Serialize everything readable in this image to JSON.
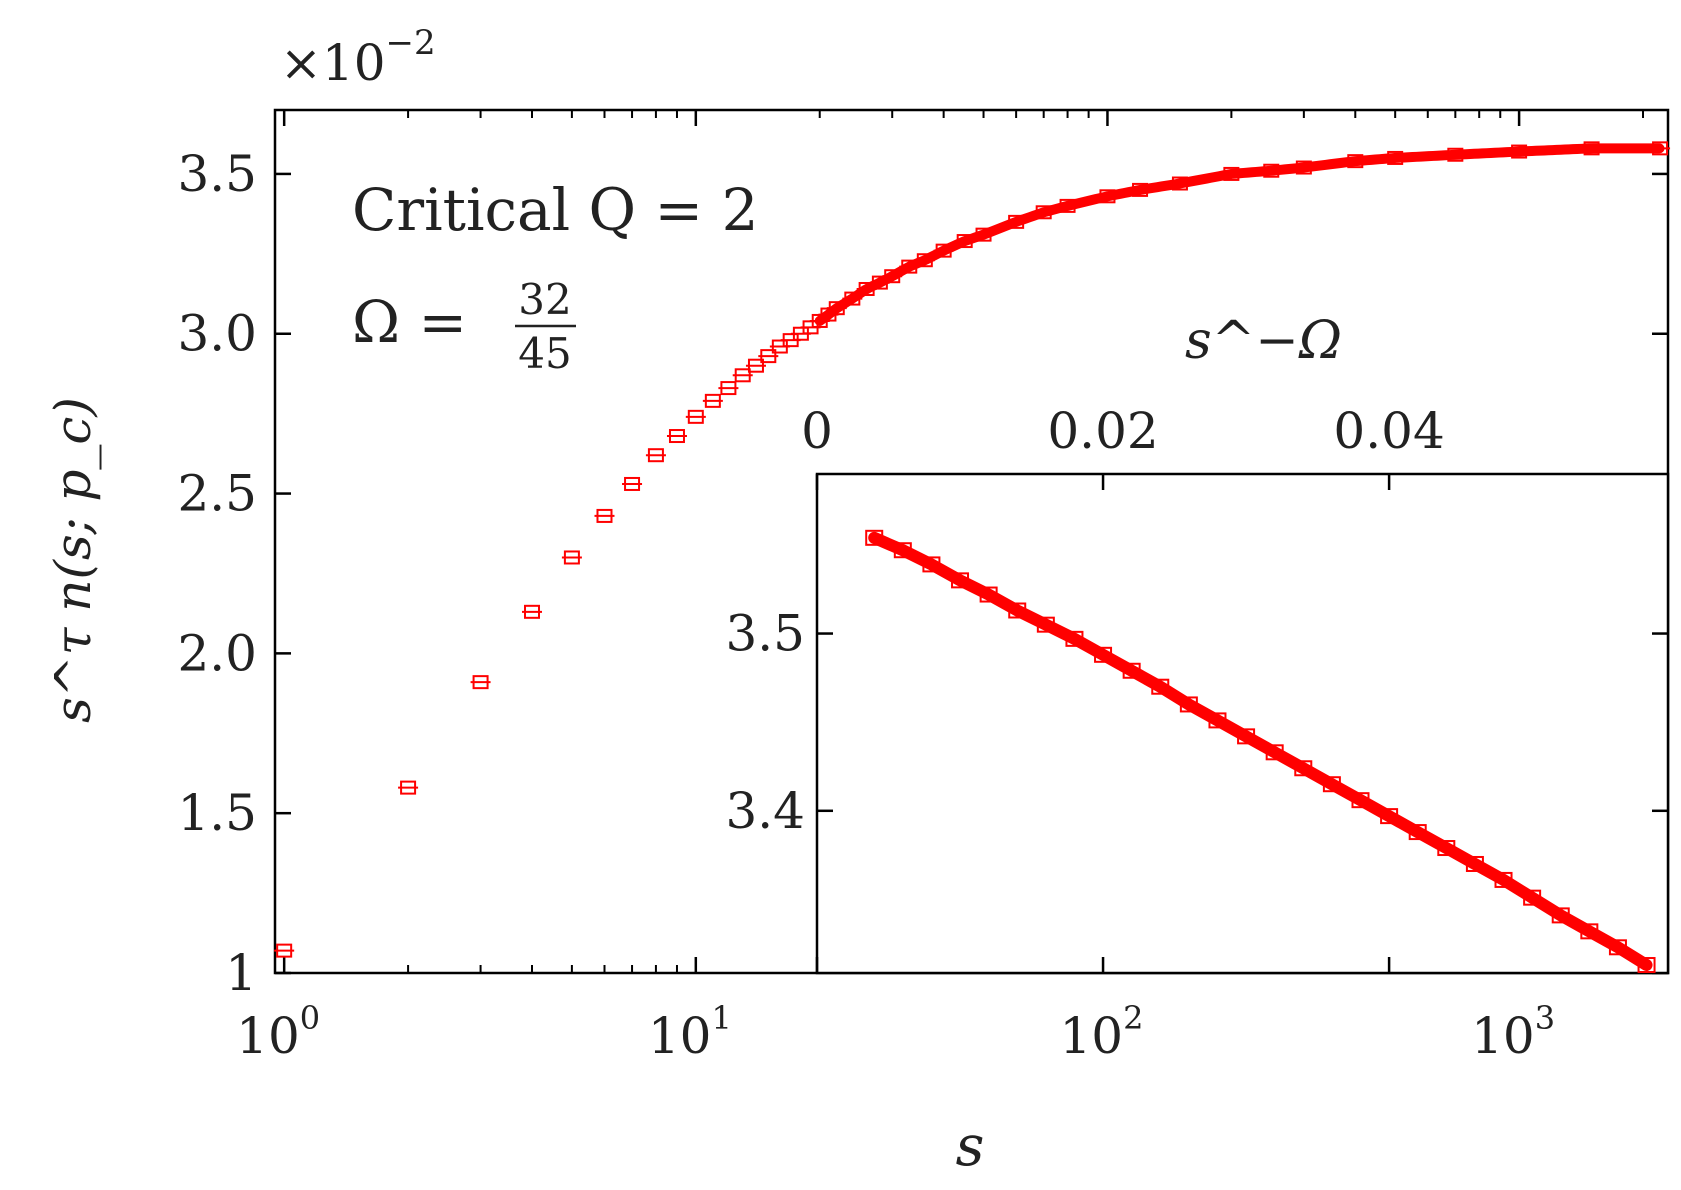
{
  "chart_data": [
    {
      "name": "main",
      "type": "scatter",
      "x_scale": "log",
      "xlabel": "s",
      "ylabel": "s^τ n(s; p_c)",
      "y_multiplier_label": "×10",
      "y_multiplier_exp": "−2",
      "xlim": [
        0.95,
        2300
      ],
      "ylim": [
        1.0,
        3.7
      ],
      "x_ticks": [
        {
          "value": 1,
          "base": "10",
          "exp": "0"
        },
        {
          "value": 10,
          "base": "10",
          "exp": "1"
        },
        {
          "value": 100,
          "base": "10",
          "exp": "2"
        },
        {
          "value": 1000,
          "base": "10",
          "exp": "3"
        }
      ],
      "y_ticks": [
        {
          "value": 1.0,
          "label": "1"
        },
        {
          "value": 1.5,
          "label": "1.5"
        },
        {
          "value": 2.0,
          "label": "2.0"
        },
        {
          "value": 2.5,
          "label": "2.5"
        },
        {
          "value": 3.0,
          "label": "3.0"
        },
        {
          "value": 3.5,
          "label": "3.5"
        }
      ],
      "annotation_line1": "Critical Q = 2",
      "annotation_omega": "Ω =",
      "annotation_frac_num": "32",
      "annotation_frac_den": "45",
      "series": [
        {
          "marker": "open-square",
          "color": "#ff0000",
          "x": [
            1,
            2,
            3,
            4,
            5,
            6,
            7,
            8,
            9,
            10,
            11,
            12,
            13,
            14,
            15,
            16,
            17,
            18,
            19,
            20,
            21,
            22,
            24,
            26,
            28,
            30,
            33,
            36,
            40,
            45,
            50,
            60,
            70,
            80,
            100,
            120,
            150,
            200,
            250,
            300,
            400,
            500,
            700,
            1000,
            1500,
            2200
          ],
          "y": [
            1.07,
            1.58,
            1.91,
            2.13,
            2.3,
            2.43,
            2.53,
            2.62,
            2.68,
            2.74,
            2.79,
            2.83,
            2.87,
            2.9,
            2.93,
            2.96,
            2.98,
            3.0,
            3.02,
            3.04,
            3.06,
            3.08,
            3.11,
            3.14,
            3.16,
            3.18,
            3.21,
            3.23,
            3.26,
            3.29,
            3.31,
            3.35,
            3.38,
            3.4,
            3.43,
            3.45,
            3.47,
            3.5,
            3.51,
            3.52,
            3.54,
            3.55,
            3.56,
            3.57,
            3.58,
            3.58
          ]
        }
      ]
    },
    {
      "name": "inset",
      "type": "line",
      "xlabel": "s^−Ω",
      "xlim": [
        0,
        0.0595
      ],
      "ylim": [
        3.3085,
        3.59
      ],
      "x_ticks": [
        {
          "value": 0,
          "label": "0"
        },
        {
          "value": 0.02,
          "label": "0.02"
        },
        {
          "value": 0.04,
          "label": "0.04"
        }
      ],
      "y_ticks": [
        {
          "value": 3.4,
          "label": "3.4"
        },
        {
          "value": 3.5,
          "label": "3.5"
        }
      ],
      "series": [
        {
          "marker": "open-square",
          "color": "#ff0000",
          "x": [
            0.004,
            0.006,
            0.008,
            0.01,
            0.012,
            0.014,
            0.016,
            0.018,
            0.02,
            0.022,
            0.024,
            0.026,
            0.028,
            0.03,
            0.032,
            0.034,
            0.036,
            0.038,
            0.04,
            0.042,
            0.044,
            0.046,
            0.048,
            0.05,
            0.052,
            0.054,
            0.056,
            0.058
          ],
          "y": [
            3.554,
            3.547,
            3.539,
            3.53,
            3.522,
            3.513,
            3.505,
            3.497,
            3.488,
            3.479,
            3.47,
            3.46,
            3.451,
            3.442,
            3.433,
            3.424,
            3.415,
            3.406,
            3.397,
            3.388,
            3.379,
            3.37,
            3.361,
            3.351,
            3.341,
            3.332,
            3.323,
            3.313
          ]
        }
      ]
    }
  ]
}
